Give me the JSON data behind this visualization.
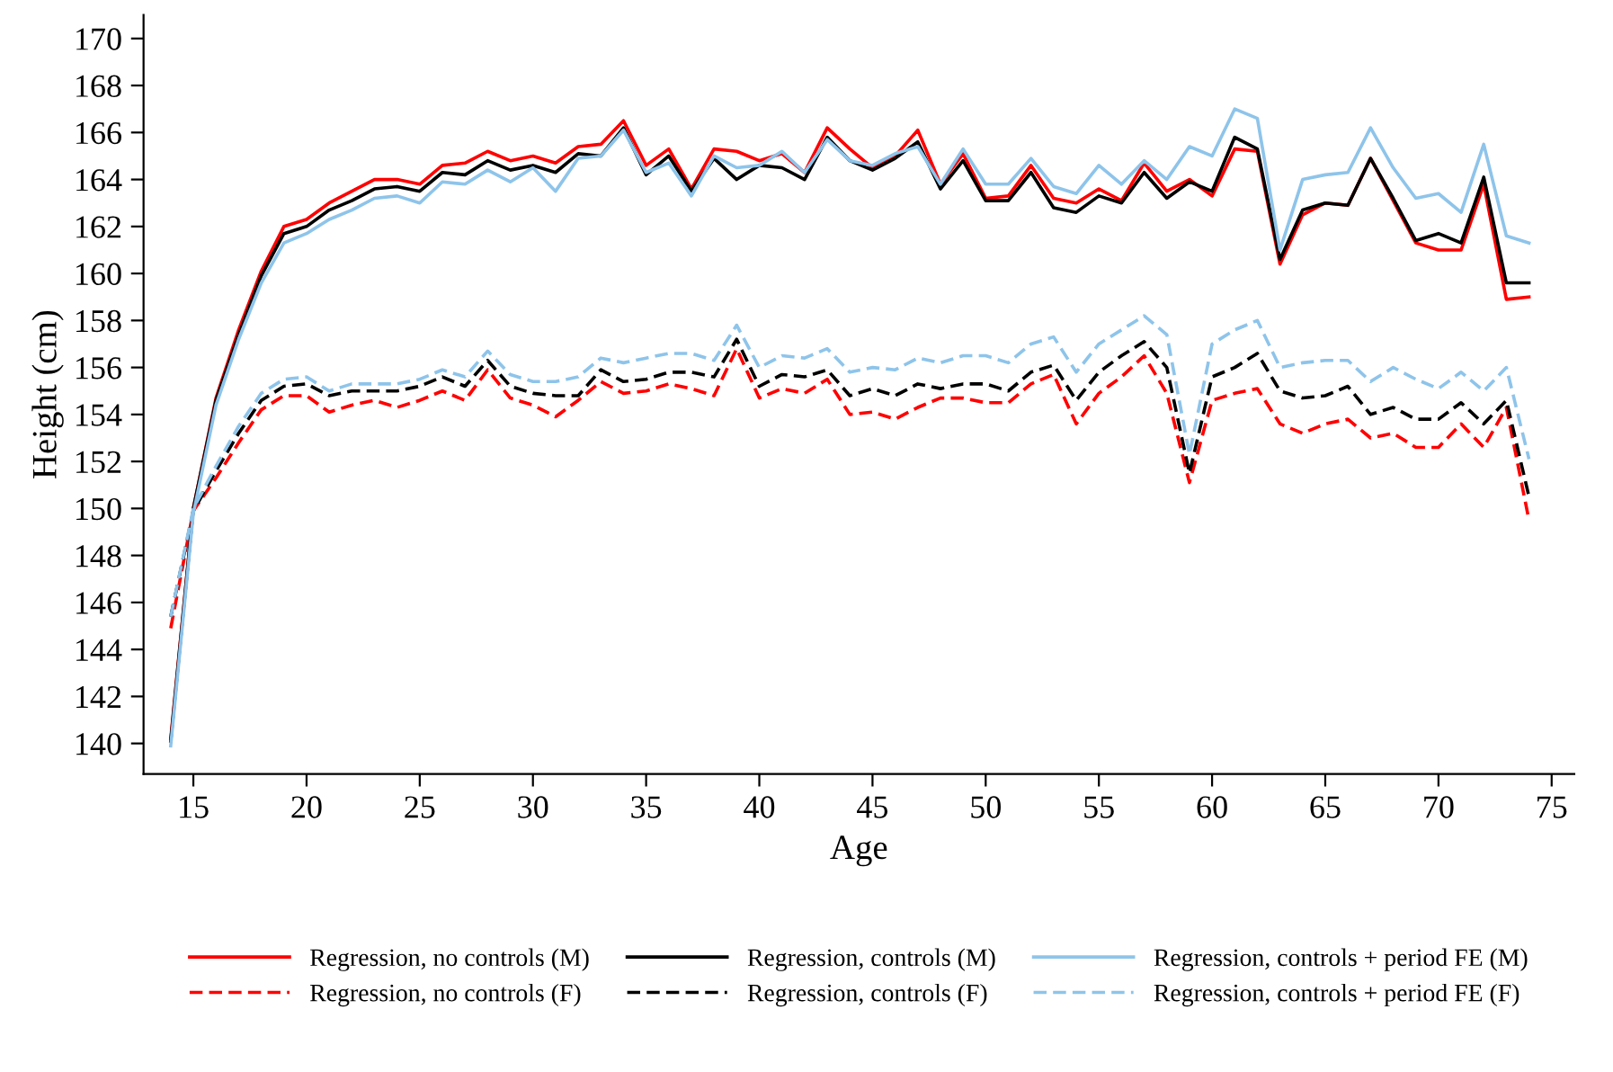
{
  "chart_data": {
    "type": "line",
    "xlabel": "Age",
    "ylabel": "Height (cm)",
    "x": [
      14,
      15,
      16,
      17,
      18,
      19,
      20,
      21,
      22,
      23,
      24,
      25,
      26,
      27,
      28,
      29,
      30,
      31,
      32,
      33,
      34,
      35,
      36,
      37,
      38,
      39,
      40,
      41,
      42,
      43,
      44,
      45,
      46,
      47,
      48,
      49,
      50,
      51,
      52,
      53,
      54,
      55,
      56,
      57,
      58,
      59,
      60,
      61,
      62,
      63,
      64,
      65,
      66,
      67,
      68,
      69,
      70,
      71,
      72,
      73,
      74
    ],
    "xlim": [
      12.8,
      76
    ],
    "xticks": [
      15,
      20,
      25,
      30,
      35,
      40,
      45,
      50,
      55,
      60,
      65,
      70,
      75
    ],
    "ylim": [
      138.7,
      171
    ],
    "yticks": [
      140,
      142,
      144,
      146,
      148,
      150,
      152,
      154,
      156,
      158,
      160,
      162,
      164,
      166,
      168,
      170
    ],
    "grid": false,
    "legend": "bottom",
    "series": [
      {
        "name": "Regression, no controls (M)",
        "color": "#ff0000",
        "line_style": "solid",
        "values": [
          140.2,
          150,
          154.7,
          157.6,
          160.1,
          162,
          162.3,
          163,
          163.5,
          164,
          164,
          163.8,
          164.6,
          164.7,
          165.2,
          164.8,
          165,
          164.7,
          165.4,
          165.5,
          166.5,
          164.6,
          165.3,
          163.6,
          165.3,
          165.2,
          164.8,
          165.1,
          164.3,
          166.2,
          165.3,
          164.5,
          165,
          166.1,
          163.8,
          165.1,
          163.2,
          163.3,
          164.6,
          163.2,
          163,
          163.6,
          163.1,
          164.7,
          163.5,
          164,
          163.3,
          165.3,
          165.2,
          160.4,
          162.5,
          163,
          162.9,
          164.9,
          163.1,
          161.3,
          161,
          161,
          163.8,
          158.9,
          159
        ]
      },
      {
        "name": "Regression, no controls (F)",
        "color": "#ff0000",
        "line_style": "dashed",
        "values": [
          144.9,
          149.9,
          151.3,
          152.8,
          154.2,
          154.8,
          154.8,
          154.1,
          154.4,
          154.6,
          154.3,
          154.6,
          155,
          154.6,
          155.9,
          154.7,
          154.4,
          153.9,
          154.6,
          155.4,
          154.9,
          155,
          155.3,
          155.1,
          154.8,
          156.8,
          154.7,
          155.1,
          154.9,
          155.5,
          154,
          154.1,
          153.8,
          154.3,
          154.7,
          154.7,
          154.5,
          154.5,
          155.3,
          155.7,
          153.6,
          154.9,
          155.6,
          156.5,
          154.9,
          151.1,
          154.6,
          154.9,
          155.1,
          153.6,
          153.2,
          153.6,
          153.8,
          153,
          153.2,
          152.6,
          152.6,
          153.6,
          152.6,
          154.3,
          149.5
        ]
      },
      {
        "name": "Regression, controls (M)",
        "color": "#000000",
        "line_style": "solid",
        "values": [
          140.1,
          150,
          154.6,
          157.4,
          159.9,
          161.7,
          162,
          162.7,
          163.1,
          163.6,
          163.7,
          163.5,
          164.3,
          164.2,
          164.8,
          164.4,
          164.6,
          164.3,
          165.1,
          165,
          166.2,
          164.2,
          165,
          163.5,
          164.9,
          164,
          164.6,
          164.5,
          164,
          165.8,
          164.8,
          164.4,
          164.9,
          165.6,
          163.6,
          164.8,
          163.1,
          163.1,
          164.3,
          162.8,
          162.6,
          163.3,
          163,
          164.3,
          163.2,
          163.9,
          163.5,
          165.8,
          165.3,
          160.6,
          162.7,
          163,
          162.9,
          164.9,
          163.2,
          161.4,
          161.7,
          161.3,
          164.1,
          159.6,
          159.6
        ]
      },
      {
        "name": "Regression, controls (F)",
        "color": "#000000",
        "line_style": "dashed",
        "values": [
          145.4,
          149.9,
          151.6,
          153.2,
          154.6,
          155.2,
          155.3,
          154.8,
          155,
          155,
          155,
          155.2,
          155.6,
          155.2,
          156.3,
          155.2,
          154.9,
          154.8,
          154.8,
          155.9,
          155.4,
          155.5,
          155.8,
          155.8,
          155.6,
          157.2,
          155.2,
          155.7,
          155.6,
          155.9,
          154.8,
          155.1,
          154.8,
          155.3,
          155.1,
          155.3,
          155.3,
          155,
          155.8,
          156.1,
          154.6,
          155.8,
          156.5,
          157.1,
          156,
          151.5,
          155.6,
          156,
          156.6,
          155,
          154.7,
          154.8,
          155.2,
          154,
          154.3,
          153.8,
          153.8,
          154.5,
          153.6,
          154.6,
          150.5
        ]
      },
      {
        "name": "Regression, controls + period FE (M)",
        "color": "#8ec4ea",
        "line_style": "solid",
        "values": [
          139.9,
          149.8,
          154.4,
          157.2,
          159.6,
          161.3,
          161.7,
          162.3,
          162.7,
          163.2,
          163.3,
          163,
          163.9,
          163.8,
          164.4,
          163.9,
          164.5,
          163.5,
          164.9,
          165,
          166.1,
          164.3,
          164.7,
          163.3,
          165,
          164.5,
          164.6,
          165.2,
          164.3,
          165.7,
          164.8,
          164.6,
          165.1,
          165.4,
          163.8,
          165.3,
          163.8,
          163.8,
          164.9,
          163.7,
          163.4,
          164.6,
          163.8,
          164.8,
          164,
          165.4,
          165,
          167,
          166.6,
          161,
          164,
          164.2,
          164.3,
          166.2,
          164.5,
          163.2,
          163.4,
          162.6,
          165.5,
          161.6,
          161.3
        ]
      },
      {
        "name": "Regression, controls + period FE (F)",
        "color": "#8ec4ea",
        "line_style": "dashed",
        "values": [
          145.4,
          150,
          151.8,
          153.5,
          154.9,
          155.5,
          155.6,
          155,
          155.3,
          155.3,
          155.3,
          155.5,
          155.9,
          155.6,
          156.7,
          155.7,
          155.4,
          155.4,
          155.6,
          156.4,
          156.2,
          156.4,
          156.6,
          156.6,
          156.3,
          157.8,
          156,
          156.5,
          156.4,
          156.8,
          155.8,
          156,
          155.9,
          156.4,
          156.2,
          156.5,
          156.5,
          156.2,
          157,
          157.3,
          155.8,
          157,
          157.6,
          158.2,
          157.4,
          152.3,
          157,
          157.6,
          158,
          156,
          156.2,
          156.3,
          156.3,
          155.4,
          156,
          155.5,
          155.1,
          155.8,
          155,
          156,
          152.1
        ]
      }
    ]
  }
}
